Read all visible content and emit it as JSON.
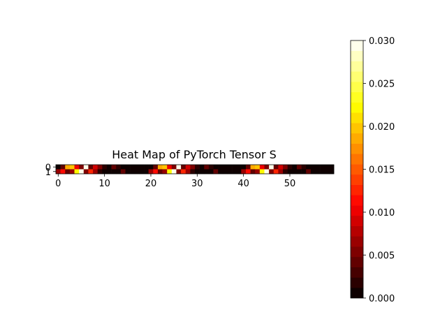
{
  "chart_data": {
    "type": "heatmap",
    "title": "Heat Map of PyTorch Tensor S",
    "xlabel": "",
    "ylabel": "",
    "colormap": "hot",
    "shape": [
      2,
      60
    ],
    "xlim": [
      -0.5,
      59.5
    ],
    "ylim": [
      1.5,
      -0.5
    ],
    "x_ticks": [
      0,
      10,
      20,
      30,
      40,
      50
    ],
    "y_ticks": [
      0,
      1
    ],
    "colorbar": {
      "vmin": 0.0,
      "vmax": 0.03,
      "ticks": [
        "0.000",
        "0.005",
        "0.010",
        "0.015",
        "0.020",
        "0.025",
        "0.030"
      ],
      "levels": 25
    },
    "values": [
      [
        0.001,
        0.0045,
        0.019,
        0.02,
        0.01,
        0.005,
        0.03,
        0.004,
        0.009,
        0.0055,
        0.002,
        0.001,
        0.004,
        0.002,
        0.001,
        0.0005,
        0.0005,
        0.0005,
        0.0005,
        0.0005,
        0.001,
        0.0045,
        0.019,
        0.02,
        0.01,
        0.005,
        0.03,
        0.004,
        0.009,
        0.0055,
        0.002,
        0.001,
        0.004,
        0.002,
        0.001,
        0.0005,
        0.0005,
        0.0005,
        0.0005,
        0.0005,
        0.001,
        0.0045,
        0.019,
        0.02,
        0.01,
        0.005,
        0.03,
        0.004,
        0.009,
        0.0055,
        0.002,
        0.001,
        0.004,
        0.002,
        0.001,
        0.0005,
        0.0005,
        0.0005,
        0.0005,
        0.0005
      ],
      [
        0.006,
        0.011,
        0.004,
        0.006,
        0.022,
        0.03,
        0.005,
        0.012,
        0.006,
        0.002,
        0.001,
        0.001,
        0.001,
        0.001,
        0.004,
        0.0005,
        0.0005,
        0.0005,
        0.0005,
        0.0005,
        0.006,
        0.011,
        0.004,
        0.006,
        0.022,
        0.03,
        0.005,
        0.012,
        0.006,
        0.002,
        0.001,
        0.001,
        0.001,
        0.001,
        0.004,
        0.0005,
        0.0005,
        0.0005,
        0.0005,
        0.0005,
        0.006,
        0.011,
        0.004,
        0.006,
        0.022,
        0.03,
        0.005,
        0.012,
        0.006,
        0.002,
        0.001,
        0.001,
        0.001,
        0.001,
        0.004,
        0.0005,
        0.0005,
        0.0005,
        0.0005,
        0.0005
      ]
    ]
  }
}
